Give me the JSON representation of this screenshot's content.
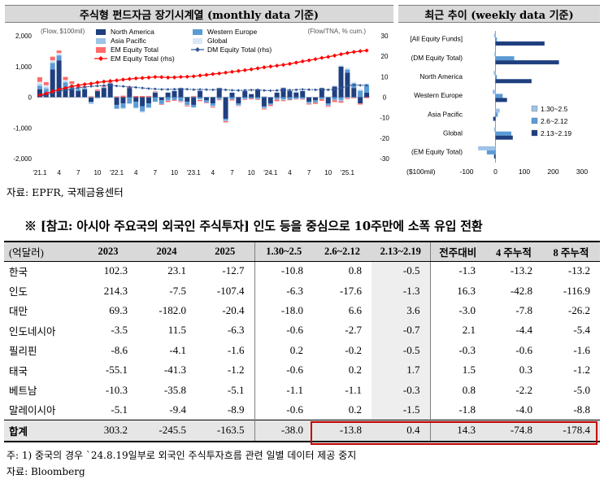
{
  "left_chart": {
    "title": "주식형 펀드자금 장기시계열 (monthly data 기준)",
    "left_axis_label": "(Flow, $100mil)",
    "right_axis_label": "(Flow/TNA, % cum.)",
    "source": "자료: EPFR, 국제금융센터"
  },
  "right_chart": {
    "title": "최근 추이 (weekly data 기준)",
    "x_unit": "($100mil)"
  },
  "chart_data": [
    {
      "type": "bar",
      "title": "주식형 펀드자금 장기시계열 (monthly data 기준)",
      "ylabel": "(Flow, $100mil)",
      "y2label": "(Flow/TNA, % cum.)",
      "ylim": [
        -2000,
        2000
      ],
      "y2lim": [
        -30,
        30
      ],
      "yticks": [
        "2,000",
        "1,000",
        "0",
        "-1,000",
        "-2,000"
      ],
      "y2ticks": [
        "30",
        "20",
        "10",
        "0",
        "-10",
        "-20",
        "-30"
      ],
      "xticks": [
        "'21.1",
        "4",
        "7",
        "10",
        "'22.1",
        "4",
        "7",
        "10",
        "'23.1",
        "4",
        "7",
        "10",
        "'24.1",
        "4",
        "7",
        "10",
        "'25.1"
      ],
      "legend": [
        "North America",
        "Western Europe",
        "Asia Pacific",
        "Global",
        "EM Equity Total",
        "DM Equity Total (rhs)",
        "EM Equity Total (rhs)"
      ],
      "colors": {
        "north_america": "#1f3f7f",
        "western_europe": "#5b9bd5",
        "asia_pacific": "#9dc3e6",
        "global": "#dae8f5",
        "em_equity_total": "#ff6b6b",
        "dm_rhs": "#2e5597",
        "em_rhs": "#ff0000"
      },
      "series": [
        {
          "name": "North America",
          "values": [
            260,
            150,
            900,
            1200,
            300,
            250,
            200,
            250,
            -150,
            200,
            300,
            450,
            -250,
            -200,
            300,
            -150,
            -300,
            -200,
            150,
            -100,
            150,
            200,
            300,
            -150,
            -250,
            200,
            -100,
            -200,
            300,
            -700,
            150,
            -200,
            200,
            100,
            250,
            -300,
            -200,
            150,
            300,
            200,
            150,
            200,
            -150,
            -100,
            300,
            -200,
            350,
            1000,
            800,
            300,
            -200,
            150
          ]
        },
        {
          "name": "Western Europe",
          "values": [
            100,
            120,
            200,
            150,
            180,
            120,
            60,
            40,
            -30,
            -20,
            20,
            -10,
            -120,
            -150,
            -200,
            -180,
            -160,
            -140,
            -150,
            -120,
            -100,
            -90,
            -120,
            -100,
            -80,
            -60,
            -70,
            -80,
            -60,
            -50,
            -70,
            -60,
            -50,
            -40,
            -60,
            -50,
            -40,
            -60,
            -70,
            -80,
            -60,
            -50,
            -40,
            -70,
            -60,
            -50,
            -80,
            -90,
            100,
            150,
            200,
            250
          ]
        },
        {
          "name": "Asia Pacific",
          "values": [
            60,
            50,
            40,
            30,
            30,
            20,
            10,
            -10,
            -40,
            -30,
            -20,
            -10,
            -10,
            -20,
            -10,
            -30,
            -20,
            10,
            20,
            -10,
            -20,
            10,
            -20,
            -10,
            20,
            30,
            10,
            -10,
            -20,
            -30,
            -10,
            -10,
            -20,
            10,
            20,
            30,
            -10,
            -20,
            -30,
            10,
            20,
            -10,
            -20,
            -10,
            -10,
            -30,
            -20,
            -40,
            -30,
            -20,
            30,
            20
          ]
        },
        {
          "name": "Global",
          "values": [
            80,
            70,
            60,
            60,
            50,
            40,
            30,
            20,
            10,
            10,
            20,
            30,
            10,
            -10,
            -20,
            -10,
            -30,
            -20,
            -10,
            10,
            20,
            30,
            10,
            -10,
            -20,
            -30,
            -10,
            -20,
            10,
            20,
            10,
            -10,
            10,
            20,
            -10,
            -20,
            10,
            20,
            30,
            40,
            30,
            20,
            10,
            10,
            20,
            30,
            40,
            50,
            60,
            50,
            40,
            30
          ]
        },
        {
          "name": "EM Equity Total",
          "values": [
            150,
            100,
            120,
            80,
            100,
            90,
            60,
            50,
            20,
            40,
            30,
            20,
            20,
            50,
            30,
            40,
            40,
            30,
            20,
            -20,
            -40,
            -30,
            -20,
            -30,
            20,
            -40,
            -20,
            -30,
            -20,
            -40,
            -30,
            -10,
            -20,
            -30,
            -20,
            -30,
            -40,
            -50,
            -30,
            -20,
            -10,
            -20,
            -30,
            -40,
            -50,
            -30,
            -60,
            -50,
            -30,
            -20,
            -40,
            -30
          ]
        },
        {
          "name": "DM Equity Total (rhs)",
          "axis": "right",
          "values": [
            0.5,
            1,
            2,
            3,
            3.5,
            4,
            4.5,
            5,
            5.3,
            5.5,
            5.7,
            5.9,
            5.5,
            5.3,
            5,
            4.8,
            4.5,
            4.2,
            4,
            3.8,
            3.8,
            3.9,
            4,
            3.9,
            3.7,
            3.8,
            3.7,
            3.6,
            3.8,
            3.6,
            3.4,
            3.3,
            3.4,
            3.5,
            3.6,
            3.3,
            3.2,
            3.3,
            3.4,
            3.5,
            3.6,
            3.8,
            3.7,
            3.6,
            3.7,
            3.6,
            3.8,
            4.5,
            5.5,
            6,
            5.8,
            5.8
          ]
        },
        {
          "name": "EM Equity Total (rhs)",
          "axis": "right",
          "values": [
            1,
            1.8,
            2.8,
            3.8,
            4.5,
            5.3,
            5.8,
            6.3,
            6.6,
            7.2,
            7.6,
            7.9,
            8.2,
            8.6,
            8.9,
            9.2,
            9.4,
            9.6,
            9.9,
            9.8,
            9.6,
            9.7,
            9.9,
            10,
            10.2,
            10.6,
            10.9,
            11.3,
            11.6,
            12,
            12.4,
            12.8,
            13.2,
            13.6,
            14.1,
            14.6,
            15,
            15.4,
            15.8,
            16.3,
            16.9,
            17.5,
            18,
            18.6,
            19.2,
            19.7,
            20.3,
            21,
            21.6,
            22.1,
            22.5,
            22.8
          ]
        }
      ]
    },
    {
      "type": "bar",
      "orientation": "horizontal",
      "title": "최근 추이 (weekly data 기준)",
      "xlabel": "($100mil)",
      "xlim": [
        -100,
        300
      ],
      "xticks": [
        "-100",
        "0",
        "100",
        "200",
        "300"
      ],
      "categories": [
        "[All Equity Funds]",
        "(DM Equity Total)",
        "North America",
        "Western Europe",
        "Asia Pacific",
        "Global",
        "(EM Equity Total)"
      ],
      "legend": [
        "1.30~2.5",
        "2.6~2.12",
        "2.13~2.19"
      ],
      "colors": {
        "1.30~2.5": "#9dc3e6",
        "2.6~2.12": "#5b9bd5",
        "2.13~2.19": "#1f3f7f"
      },
      "series": [
        {
          "name": "1.30~2.5",
          "values": [
            -5,
            -4,
            -6,
            -10,
            15,
            -5,
            -60
          ]
        },
        {
          "name": "2.6~2.12",
          "values": [
            5,
            65,
            5,
            25,
            8,
            55,
            -30
          ]
        },
        {
          "name": "2.13~2.19",
          "values": [
            170,
            220,
            125,
            40,
            -8,
            60,
            -5
          ]
        }
      ]
    }
  ],
  "reference": {
    "title": "※ [참고: 아시아 주요국의 외국인 주식투자] 인도 등을 중심으로 10주만에 소폭 유입 전환",
    "columns": [
      "(억달러)",
      "2023",
      "2024",
      "2025",
      "1.30~2.5",
      "2.6~2.12",
      "2.13~2.19",
      "전주대비",
      "4 주누적",
      "8 주누적"
    ],
    "rows": [
      [
        "한국",
        "102.3",
        "23.1",
        "-12.7",
        "-10.8",
        "0.8",
        "-0.5",
        "-1.3",
        "-13.2",
        "-13.2"
      ],
      [
        "인도",
        "214.3",
        "-7.5",
        "-107.4",
        "-6.3",
        "-17.6",
        "-1.3",
        "16.3",
        "-42.8",
        "-116.9"
      ],
      [
        "대만",
        "69.3",
        "-182.0",
        "-20.4",
        "-18.0",
        "6.6",
        "3.6",
        "-3.0",
        "-7.8",
        "-26.2"
      ],
      [
        "인도네시아",
        "-3.5",
        "11.5",
        "-6.3",
        "-0.6",
        "-2.7",
        "-0.7",
        "2.1",
        "-4.4",
        "-5.4"
      ],
      [
        "필리핀",
        "-8.6",
        "-4.1",
        "-1.6",
        "0.2",
        "-0.2",
        "-0.5",
        "-0.3",
        "-0.6",
        "-1.6"
      ],
      [
        "태국",
        "-55.1",
        "-41.3",
        "-1.2",
        "-0.6",
        "0.2",
        "1.7",
        "1.5",
        "0.3",
        "-1.2"
      ],
      [
        "베트남",
        "-10.3",
        "-35.8",
        "-5.1",
        "-1.1",
        "-1.1",
        "-0.3",
        "0.8",
        "-2.2",
        "-5.0"
      ],
      [
        "말레이시아",
        "-5.1",
        "-9.4",
        "-8.9",
        "-0.6",
        "0.2",
        "-1.5",
        "-1.8",
        "-4.0",
        "-8.8"
      ]
    ],
    "total": [
      "합계",
      "303.2",
      "-245.5",
      "-163.5",
      "-38.0",
      "-13.8",
      "0.4",
      "14.3",
      "-74.8",
      "-178.4"
    ],
    "note": "주: 1) 중국의 경우 `24.8.19일부로 외국인 주식투자흐름 관련 일별 데이터 제공 중지",
    "source": "자료: Bloomberg"
  }
}
